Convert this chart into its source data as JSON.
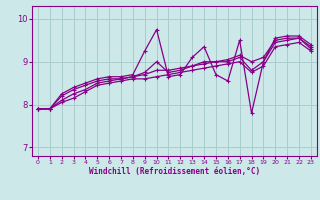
{
  "xlabel": "Windchill (Refroidissement éolien,°C)",
  "bg_color": "#cce8e8",
  "line_color": "#880088",
  "grid_color": "#aacccc",
  "xlim": [
    -0.5,
    23.5
  ],
  "ylim": [
    6.8,
    10.3
  ],
  "xticks": [
    0,
    1,
    2,
    3,
    4,
    5,
    6,
    7,
    8,
    9,
    10,
    11,
    12,
    13,
    14,
    15,
    16,
    17,
    18,
    19,
    20,
    21,
    22,
    23
  ],
  "yticks": [
    7,
    8,
    9,
    10
  ],
  "series": [
    [
      7.9,
      7.9,
      8.25,
      8.4,
      8.5,
      8.6,
      8.65,
      8.65,
      8.7,
      9.25,
      9.75,
      8.65,
      8.7,
      9.1,
      9.35,
      8.7,
      8.55,
      9.5,
      7.8,
      9.0,
      9.55,
      9.6,
      9.6,
      9.4
    ],
    [
      7.9,
      7.9,
      8.2,
      8.35,
      8.45,
      8.55,
      8.6,
      8.6,
      8.65,
      8.75,
      9.0,
      8.75,
      8.8,
      8.9,
      9.0,
      9.0,
      9.05,
      9.15,
      9.0,
      9.1,
      9.5,
      9.55,
      9.55,
      9.35
    ],
    [
      7.9,
      7.9,
      8.1,
      8.25,
      8.35,
      8.5,
      8.55,
      8.6,
      8.65,
      8.7,
      8.8,
      8.8,
      8.85,
      8.9,
      8.95,
      9.0,
      9.0,
      9.1,
      8.8,
      9.0,
      9.45,
      9.5,
      9.55,
      9.3
    ],
    [
      7.9,
      7.9,
      8.05,
      8.15,
      8.3,
      8.45,
      8.5,
      8.55,
      8.6,
      8.6,
      8.65,
      8.7,
      8.75,
      8.8,
      8.85,
      8.9,
      8.95,
      9.0,
      8.75,
      8.9,
      9.35,
      9.4,
      9.45,
      9.25
    ]
  ]
}
